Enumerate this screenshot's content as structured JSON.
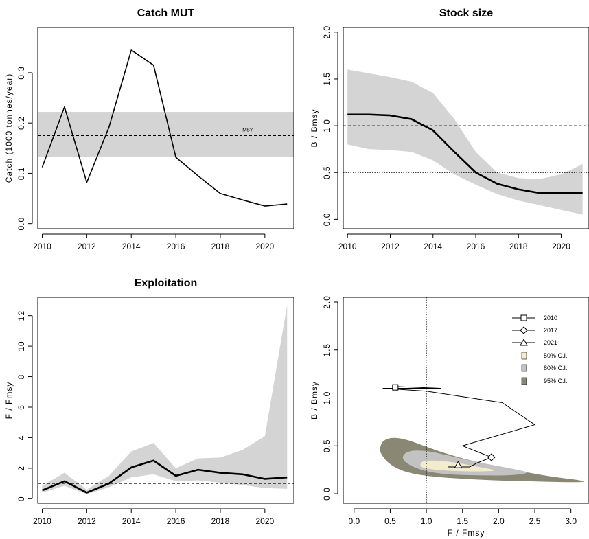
{
  "colors": {
    "band": "#d4d4d4",
    "line": "#000000",
    "ci50": "#f2ebcc",
    "ci80": "#c2c2c2",
    "ci95": "#8a8775"
  },
  "chart_data": [
    {
      "type": "line",
      "title": "Catch MUT",
      "xlabel": "",
      "ylabel": "Catch (1000 tonnes/year)",
      "xlim": [
        2009.8,
        2021.3
      ],
      "ylim": [
        -0.01,
        0.39
      ],
      "xticks": [
        2010,
        2012,
        2014,
        2016,
        2018,
        2020
      ],
      "yticks": [
        0.0,
        0.1,
        0.2,
        0.3
      ],
      "x": [
        2010,
        2011,
        2012,
        2013,
        2014,
        2015,
        2016,
        2017,
        2018,
        2019,
        2020,
        2021
      ],
      "series": [
        {
          "values": [
            0.112,
            0.232,
            0.082,
            0.192,
            0.345,
            0.315,
            0.132,
            0.095,
            0.06,
            0.047,
            0.035,
            0.039
          ]
        }
      ],
      "band": {
        "lower": 0.133,
        "upper": 0.222
      },
      "reference_lines": [
        {
          "value": 0.175,
          "label": "MSY",
          "style": "dashed"
        }
      ]
    },
    {
      "type": "line",
      "title": "Stock size",
      "xlabel": "",
      "ylabel": "B / Bmsy",
      "xlim": [
        2009.8,
        2021.3
      ],
      "ylim": [
        -0.1,
        2.05
      ],
      "xticks": [
        2010,
        2012,
        2014,
        2016,
        2018,
        2020
      ],
      "yticks": [
        0.0,
        0.5,
        1.0,
        1.5,
        2.0
      ],
      "x": [
        2010,
        2011,
        2012,
        2013,
        2014,
        2015,
        2016,
        2017,
        2018,
        2019,
        2020,
        2021
      ],
      "series": [
        {
          "values": [
            1.12,
            1.12,
            1.11,
            1.07,
            0.95,
            0.72,
            0.5,
            0.38,
            0.32,
            0.28,
            0.28,
            0.28
          ]
        }
      ],
      "band": {
        "lower": [
          0.8,
          0.75,
          0.74,
          0.72,
          0.63,
          0.48,
          0.37,
          0.27,
          0.2,
          0.15,
          0.1,
          0.05
        ],
        "upper": [
          1.6,
          1.56,
          1.52,
          1.47,
          1.35,
          1.07,
          0.72,
          0.5,
          0.44,
          0.43,
          0.48,
          0.59
        ]
      },
      "reference_lines": [
        {
          "value": 1.0,
          "style": "dashed"
        },
        {
          "value": 0.5,
          "style": "dotted"
        }
      ]
    },
    {
      "type": "line",
      "title": "Exploitation",
      "xlabel": "",
      "ylabel": "F / Fmsy",
      "xlim": [
        2009.8,
        2021.3
      ],
      "ylim": [
        -0.3,
        13.2
      ],
      "xticks": [
        2010,
        2012,
        2014,
        2016,
        2018,
        2020
      ],
      "yticks": [
        0,
        2,
        4,
        6,
        8,
        10,
        12
      ],
      "x": [
        2010,
        2011,
        2012,
        2013,
        2014,
        2015,
        2016,
        2017,
        2018,
        2019,
        2020,
        2021
      ],
      "series": [
        {
          "values": [
            0.55,
            1.15,
            0.4,
            1.0,
            2.05,
            2.5,
            1.5,
            1.9,
            1.7,
            1.6,
            1.3,
            1.4
          ]
        }
      ],
      "band": {
        "lower": [
          0.4,
          0.85,
          0.3,
          0.75,
          1.4,
          1.6,
          1.15,
          1.2,
          1.05,
          0.9,
          0.7,
          0.65
        ],
        "upper": [
          0.85,
          1.7,
          0.6,
          1.5,
          3.1,
          3.65,
          2.0,
          2.65,
          2.7,
          3.2,
          4.1,
          12.7
        ]
      },
      "reference_lines": [
        {
          "value": 1.0,
          "style": "dashed"
        }
      ]
    },
    {
      "type": "scatter",
      "title": "",
      "xlabel": "F / Fmsy",
      "ylabel": "B / Bmsy",
      "xlim": [
        -0.15,
        3.25
      ],
      "ylim": [
        -0.1,
        2.05
      ],
      "xticks": [
        0.0,
        0.5,
        1.0,
        1.5,
        2.0,
        2.5,
        3.0
      ],
      "yticks": [
        0.0,
        0.5,
        1.0,
        1.5,
        2.0
      ],
      "trajectory": {
        "f": [
          0.55,
          1.2,
          0.4,
          1.0,
          2.05,
          2.5,
          1.5,
          1.9,
          1.7,
          1.6,
          1.3,
          1.4
        ],
        "b": [
          1.12,
          1.1,
          1.1,
          1.07,
          0.95,
          0.72,
          0.5,
          0.38,
          0.32,
          0.28,
          0.28,
          0.28
        ]
      },
      "markers": [
        {
          "label": "2010",
          "shape": "square",
          "f": 0.57,
          "b": 1.11
        },
        {
          "label": "2017",
          "shape": "diamond",
          "f": 1.9,
          "b": 0.38
        },
        {
          "label": "2021",
          "shape": "triangle",
          "f": 1.44,
          "b": 0.3
        }
      ],
      "confidence_regions": [
        {
          "label": "95% C.I.",
          "color": "#8a8775",
          "f": [
            0.35,
            0.4,
            0.55,
            0.75,
            1.0,
            1.3,
            1.7,
            2.2,
            2.7,
            3.15,
            3.2,
            2.9,
            2.4,
            1.9,
            1.4,
            1.05,
            0.72,
            0.5,
            0.38
          ],
          "b": [
            0.47,
            0.56,
            0.59,
            0.56,
            0.49,
            0.41,
            0.33,
            0.25,
            0.18,
            0.14,
            0.12,
            0.12,
            0.13,
            0.14,
            0.16,
            0.18,
            0.22,
            0.3,
            0.4
          ]
        },
        {
          "label": "80% C.I.",
          "color": "#c2c2c2",
          "f": [
            0.65,
            0.75,
            1.0,
            1.3,
            1.7,
            2.2,
            2.45,
            2.2,
            1.7,
            1.3,
            1.0,
            0.75
          ],
          "b": [
            0.38,
            0.45,
            0.45,
            0.4,
            0.33,
            0.26,
            0.22,
            0.19,
            0.19,
            0.2,
            0.23,
            0.3
          ]
        },
        {
          "label": "50% C.I.",
          "color": "#f2ebcc",
          "f": [
            0.9,
            0.95,
            1.3,
            1.8,
            2.0,
            1.7,
            1.3,
            1.0
          ],
          "b": [
            0.29,
            0.35,
            0.34,
            0.27,
            0.24,
            0.23,
            0.24,
            0.26
          ]
        }
      ],
      "reference_lines": [
        {
          "axis": "y",
          "value": 1.0,
          "style": "dotted"
        },
        {
          "axis": "x",
          "value": 1.0,
          "style": "dotted"
        }
      ],
      "legend": {
        "position": "top-right",
        "entries": [
          "2010",
          "2017",
          "2021",
          "50% C.I.",
          "80% C.I.",
          "95% C.I."
        ]
      }
    }
  ]
}
